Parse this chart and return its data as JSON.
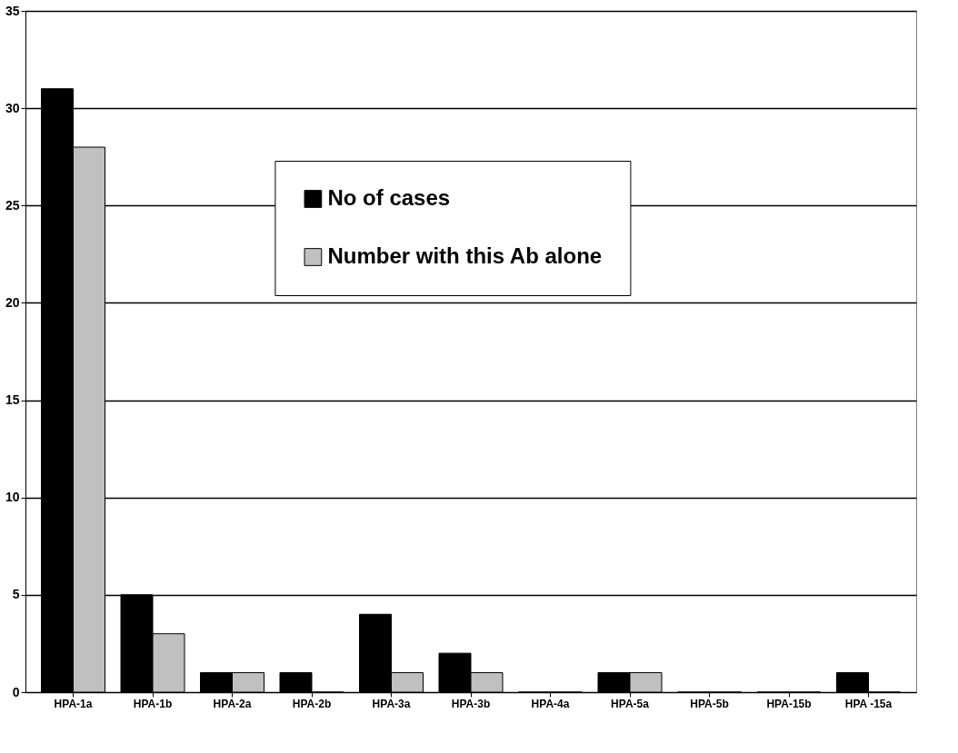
{
  "chart_data": {
    "type": "bar",
    "categories": [
      "HPA-1a",
      "HPA-1b",
      "HPA-2a",
      "HPA-2b",
      "HPA-3a",
      "HPA-3b",
      "HPA-4a",
      "HPA-5a",
      "HPA-5b",
      "HPA-15b",
      "HPA -15a"
    ],
    "series": [
      {
        "name": "No of cases",
        "color": "#000000",
        "values": [
          31,
          5,
          1,
          1,
          4,
          2,
          0,
          1,
          0,
          0,
          1
        ]
      },
      {
        "name": "Number with this Ab alone",
        "color": "#c0c0c0",
        "values": [
          28,
          3,
          1,
          0,
          1,
          1,
          0,
          1,
          0,
          0,
          0
        ]
      }
    ],
    "ylim": [
      0,
      35
    ],
    "yticks": [
      0,
      5,
      10,
      15,
      20,
      25,
      30,
      35
    ],
    "grid": "y",
    "legend": "top"
  }
}
